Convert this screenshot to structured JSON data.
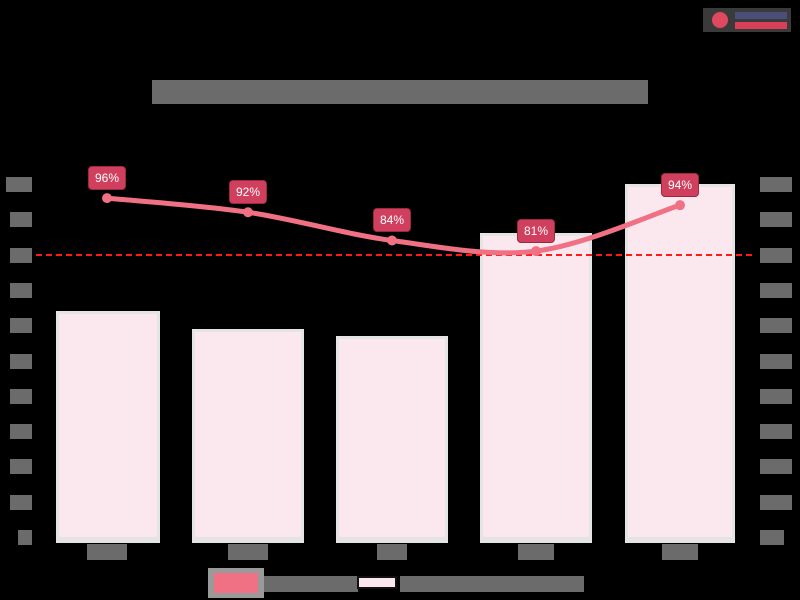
{
  "logo": {
    "name": "logo",
    "colors": [
      "#e04860",
      "#4a4f7a",
      "#d8405a"
    ]
  },
  "title": "[redacted chart title]",
  "chart_data": {
    "type": "bar+line",
    "title": "[redacted]",
    "categories": [
      "[redacted-1]",
      "[redacted-2]",
      "[redacted-3]",
      "[redacted-4]",
      "[redacted-5]"
    ],
    "series": [
      {
        "name": "[redacted line series]",
        "type": "line",
        "axis": "left",
        "unit": "%",
        "values": [
          96,
          92,
          84,
          81,
          94
        ],
        "color": "#f07084"
      },
      {
        "name": "[redacted bar series]",
        "type": "bar",
        "axis": "right",
        "values_fraction_of_axis_max": [
          0.64,
          0.59,
          0.57,
          0.86,
          1.0
        ],
        "color": "#fbe7ee"
      }
    ],
    "reference_line": {
      "axis": "left",
      "value": 80,
      "style": "dashed",
      "color": "#ff1a1a"
    },
    "left_axis": {
      "ylim": [
        0,
        100
      ],
      "ticks": [
        "100%",
        "90%",
        "80%",
        "70%",
        "60%",
        "50%",
        "40%",
        "30%",
        "20%",
        "10%",
        "0%"
      ]
    },
    "right_axis": {
      "ticks": [
        "[r10]",
        "[r9]",
        "[r8]",
        "[r7]",
        "[r6]",
        "[r5]",
        "[r4]",
        "[r3]",
        "[r2]",
        "[r1]",
        "[r0]"
      ]
    },
    "data_labels": [
      "96%",
      "92%",
      "84%",
      "81%",
      "94%"
    ],
    "legend": {
      "position": "bottom",
      "entries": [
        "[redacted line series]",
        "[redacted bar series]"
      ]
    },
    "grid": false
  },
  "legend": {
    "line_label": "[redacted line series]",
    "bar_label": "[redacted bar series]"
  }
}
